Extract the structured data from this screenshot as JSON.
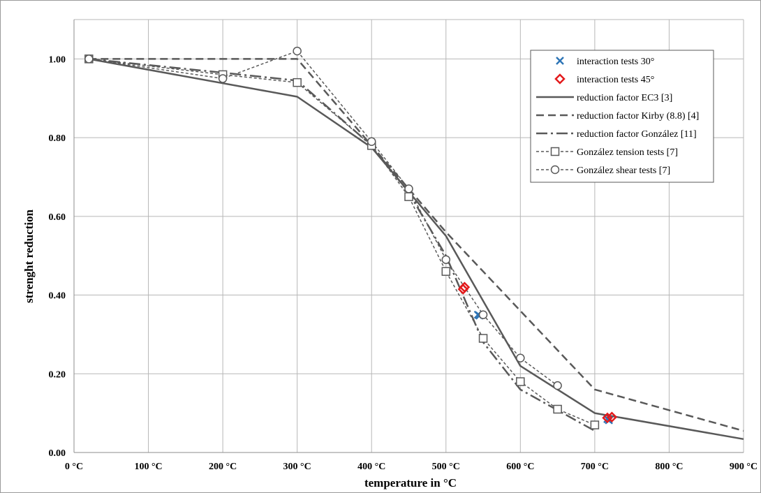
{
  "chart_data": {
    "type": "line",
    "title": "",
    "xlabel": "temperature in °C",
    "ylabel": "strenght reduction",
    "xlim": [
      0,
      900
    ],
    "ylim": [
      0,
      1.1
    ],
    "grid": true,
    "legend_position": "top-right",
    "x_ticks": [
      {
        "value": 0,
        "label": "0 °C"
      },
      {
        "value": 100,
        "label": "100 °C"
      },
      {
        "value": 200,
        "label": "200 °C"
      },
      {
        "value": 300,
        "label": "300 °C"
      },
      {
        "value": 400,
        "label": "400 °C"
      },
      {
        "value": 500,
        "label": "500 °C"
      },
      {
        "value": 600,
        "label": "600 °C"
      },
      {
        "value": 700,
        "label": "700 °C"
      },
      {
        "value": 800,
        "label": "800 °C"
      },
      {
        "value": 900,
        "label": "900 °C"
      }
    ],
    "y_ticks": [
      {
        "value": 0.0,
        "label": "0.00"
      },
      {
        "value": 0.2,
        "label": "0.20"
      },
      {
        "value": 0.4,
        "label": "0.40"
      },
      {
        "value": 0.6,
        "label": "0.60"
      },
      {
        "value": 0.8,
        "label": "0.80"
      },
      {
        "value": 1.0,
        "label": "1.00"
      }
    ],
    "series": [
      {
        "name": "interaction tests 30°",
        "style": "marker-x",
        "color": "#2e75b6",
        "points": [
          [
            543,
            0.35
          ],
          [
            545,
            0.348
          ],
          [
            717,
            0.085
          ],
          [
            719,
            0.082
          ]
        ]
      },
      {
        "name": "interaction tests 45°",
        "style": "marker-diamond",
        "color": "#e31a1c",
        "points": [
          [
            523,
            0.415
          ],
          [
            525,
            0.42
          ],
          [
            717,
            0.088
          ],
          [
            723,
            0.09
          ]
        ]
      },
      {
        "name": "reduction factor EC3 [3]",
        "style": "solid",
        "color": "#595959",
        "points": [
          [
            20,
            1.0
          ],
          [
            300,
            0.904
          ],
          [
            400,
            0.775
          ],
          [
            500,
            0.55
          ],
          [
            600,
            0.22
          ],
          [
            700,
            0.1
          ],
          [
            900,
            0.034
          ]
        ]
      },
      {
        "name": "reduction factor Kirby (8.8) [4]",
        "style": "dash",
        "color": "#595959",
        "points": [
          [
            20,
            1.0
          ],
          [
            300,
            1.0
          ],
          [
            400,
            0.78
          ],
          [
            450,
            0.67
          ],
          [
            500,
            0.56
          ],
          [
            600,
            0.36
          ],
          [
            700,
            0.16
          ],
          [
            900,
            0.055
          ]
        ]
      },
      {
        "name": "reduction factor González [11]",
        "style": "dashdot",
        "color": "#595959",
        "points": [
          [
            20,
            1.0
          ],
          [
            200,
            0.965
          ],
          [
            300,
            0.945
          ],
          [
            400,
            0.78
          ],
          [
            450,
            0.66
          ],
          [
            500,
            0.5
          ],
          [
            550,
            0.28
          ],
          [
            600,
            0.16
          ],
          [
            700,
            0.055
          ]
        ]
      },
      {
        "name": "González tension tests [7]",
        "style": "dotted-square",
        "color": "#595959",
        "points": [
          [
            20,
            1.0
          ],
          [
            200,
            0.96
          ],
          [
            300,
            0.94
          ],
          [
            400,
            0.78
          ],
          [
            450,
            0.65
          ],
          [
            500,
            0.46
          ],
          [
            550,
            0.29
          ],
          [
            600,
            0.18
          ],
          [
            650,
            0.11
          ],
          [
            700,
            0.07
          ]
        ]
      },
      {
        "name": "González shear tests [7]",
        "style": "dotted-circle",
        "color": "#595959",
        "points": [
          [
            20,
            1.0
          ],
          [
            200,
            0.95
          ],
          [
            300,
            1.02
          ],
          [
            400,
            0.79
          ],
          [
            450,
            0.67
          ],
          [
            500,
            0.49
          ],
          [
            550,
            0.35
          ],
          [
            600,
            0.24
          ],
          [
            650,
            0.17
          ]
        ]
      }
    ]
  }
}
